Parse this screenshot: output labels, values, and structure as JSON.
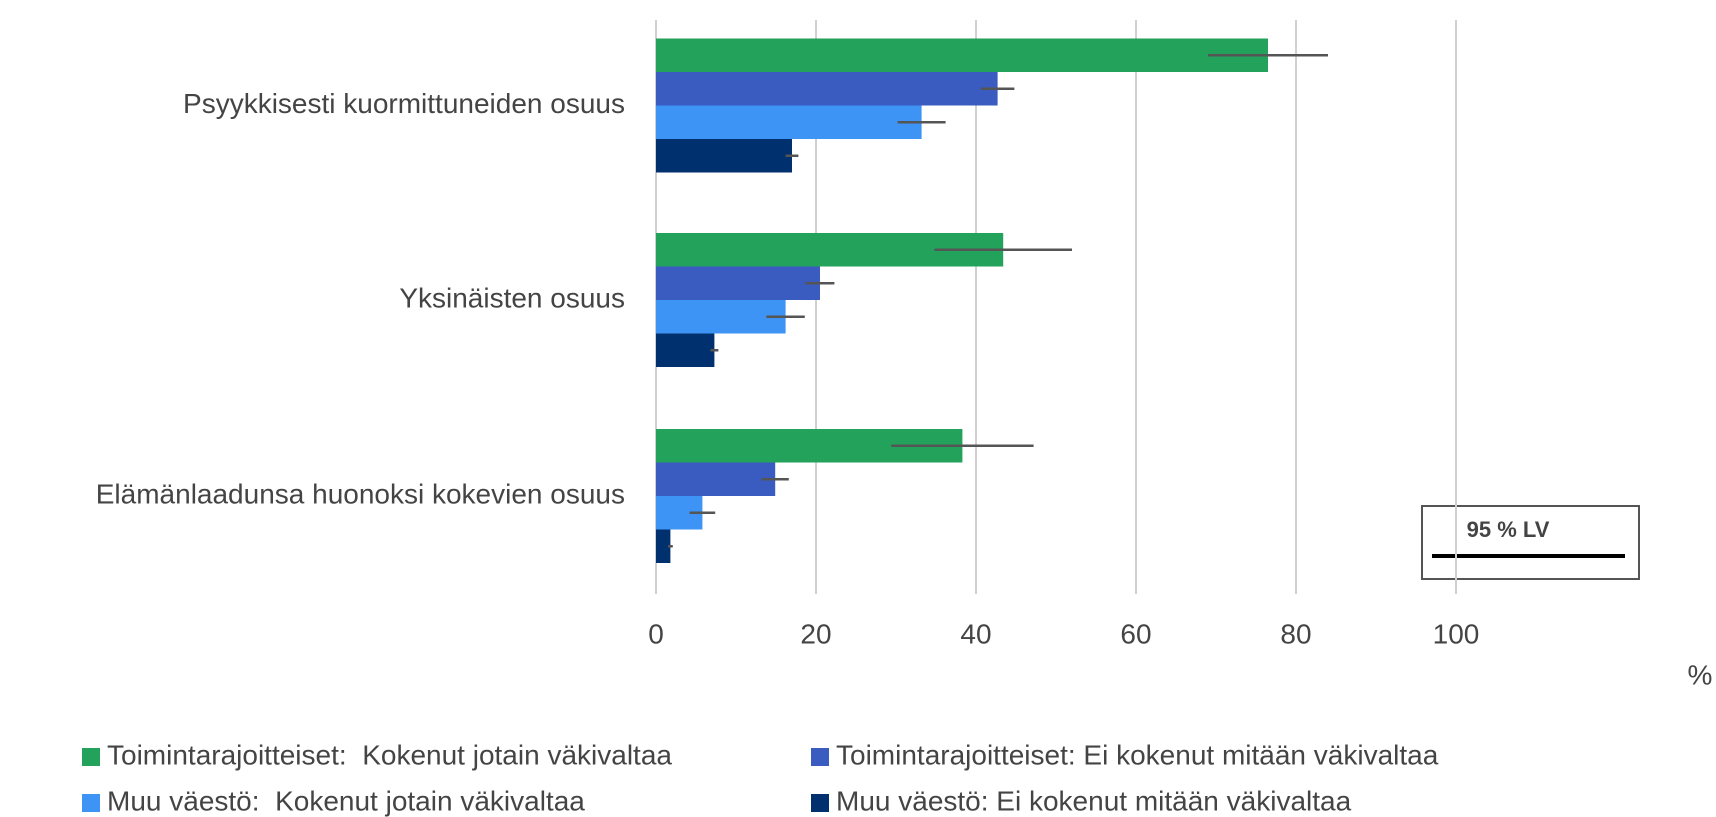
{
  "chart_data": {
    "type": "bar",
    "orientation": "horizontal",
    "categories": [
      "Psyykkisesti kuormittuneiden osuus",
      "Yksinäisten osuus",
      "Elämänlaadunsa huonoksi kokevien osuus"
    ],
    "series": [
      {
        "name": "Toimintarajoitteiset:  Kokenut jotain väkivaltaa",
        "color": "#22a25a",
        "values": [
          76.5,
          43.4,
          38.3
        ],
        "errors": [
          7.5,
          8.6,
          8.9
        ]
      },
      {
        "name": "Toimintarajoitteiset: Ei kokenut mitään väkivaltaa",
        "color": "#3a5bc0",
        "values": [
          42.7,
          20.5,
          14.9
        ],
        "errors": [
          2.1,
          1.8,
          1.7
        ]
      },
      {
        "name": "Muu väestö:  Kokenut jotain väkivaltaa",
        "color": "#3d94f5",
        "values": [
          33.2,
          16.2,
          5.8
        ],
        "errors": [
          3.0,
          2.4,
          1.6
        ]
      },
      {
        "name": "Muu väestö: Ei kokenut mitään väkivaltaa",
        "color": "#00306e",
        "values": [
          17.0,
          7.3,
          1.8
        ],
        "errors": [
          0.8,
          0.5,
          0.3
        ]
      }
    ],
    "xlabel": "%",
    "annotation": "95 % LV",
    "xlim": [
      0,
      100
    ],
    "xticks": [
      0,
      20,
      40,
      60,
      80,
      100
    ],
    "grid": true
  }
}
